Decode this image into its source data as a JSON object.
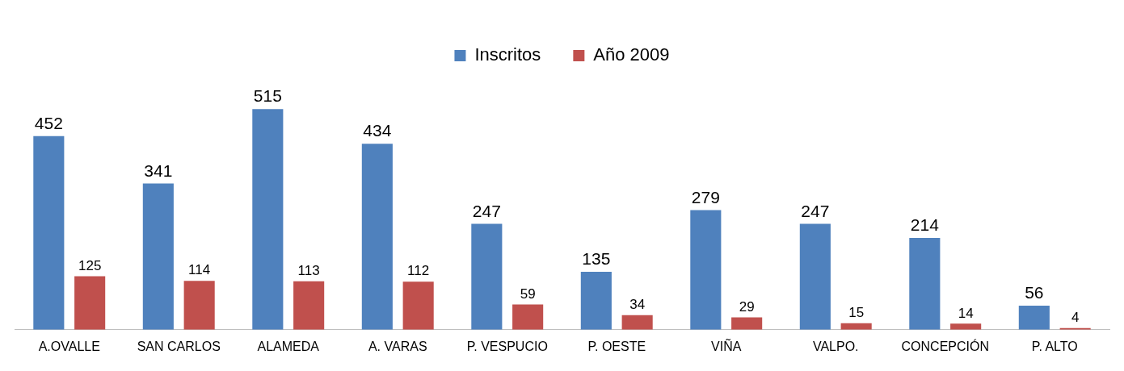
{
  "chart_data": {
    "type": "bar",
    "categories": [
      "A.OVALLE",
      "SAN CARLOS",
      "ALAMEDA",
      "A. VARAS",
      "P. VESPUCIO",
      "P. OESTE",
      "VIÑA",
      "VALPO.",
      "CONCEPCIÓN",
      "P. ALTO"
    ],
    "series": [
      {
        "name": "Inscritos",
        "color": "#4f81bd",
        "values": [
          452,
          341,
          515,
          434,
          247,
          135,
          279,
          247,
          214,
          56
        ]
      },
      {
        "name": "Año 2009",
        "color": "#c0504d",
        "values": [
          125,
          114,
          113,
          112,
          59,
          34,
          29,
          15,
          14,
          4
        ]
      }
    ],
    "data_labels": true,
    "legend": "top",
    "grid": false,
    "tick_labels": "x"
  }
}
